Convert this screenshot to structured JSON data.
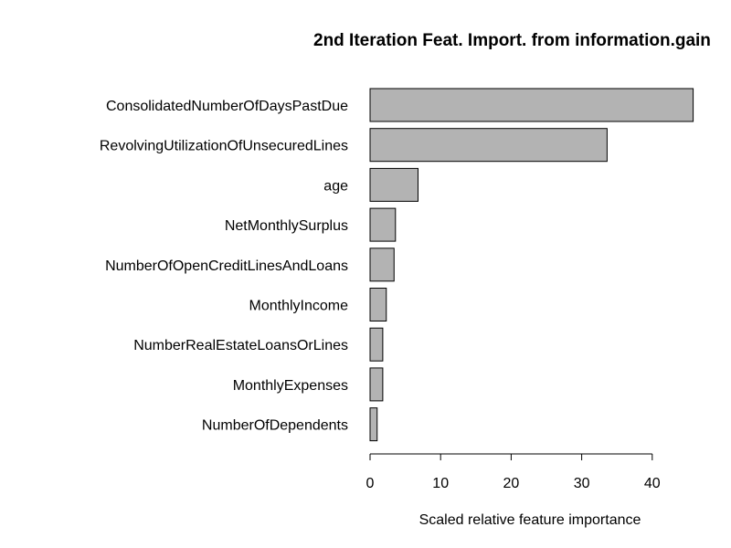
{
  "chart_data": {
    "type": "bar",
    "orientation": "horizontal",
    "title": "2nd Iteration Feat. Import. from information.gain",
    "xlabel": "Scaled relative feature importance",
    "ylabel": "",
    "categories": [
      "ConsolidatedNumberOfDaysPastDue",
      "RevolvingUtilizationOfUnsecuredLines",
      "age",
      "NetMonthlySurplus",
      "NumberOfOpenCreditLinesAndLoans",
      "MonthlyIncome",
      "NumberRealEstateLoansOrLines",
      "MonthlyExpenses",
      "NumberOfDependents"
    ],
    "values": [
      45.8,
      33.6,
      6.8,
      3.6,
      3.4,
      2.3,
      1.8,
      1.8,
      1.0
    ],
    "xticks": [
      0,
      10,
      20,
      30,
      40
    ],
    "xlim": [
      0,
      46
    ],
    "grid": false,
    "legend": "none",
    "colors": {
      "bar_fill": "#b3b3b3",
      "bar_stroke": "#000000",
      "text": "#000000"
    }
  }
}
